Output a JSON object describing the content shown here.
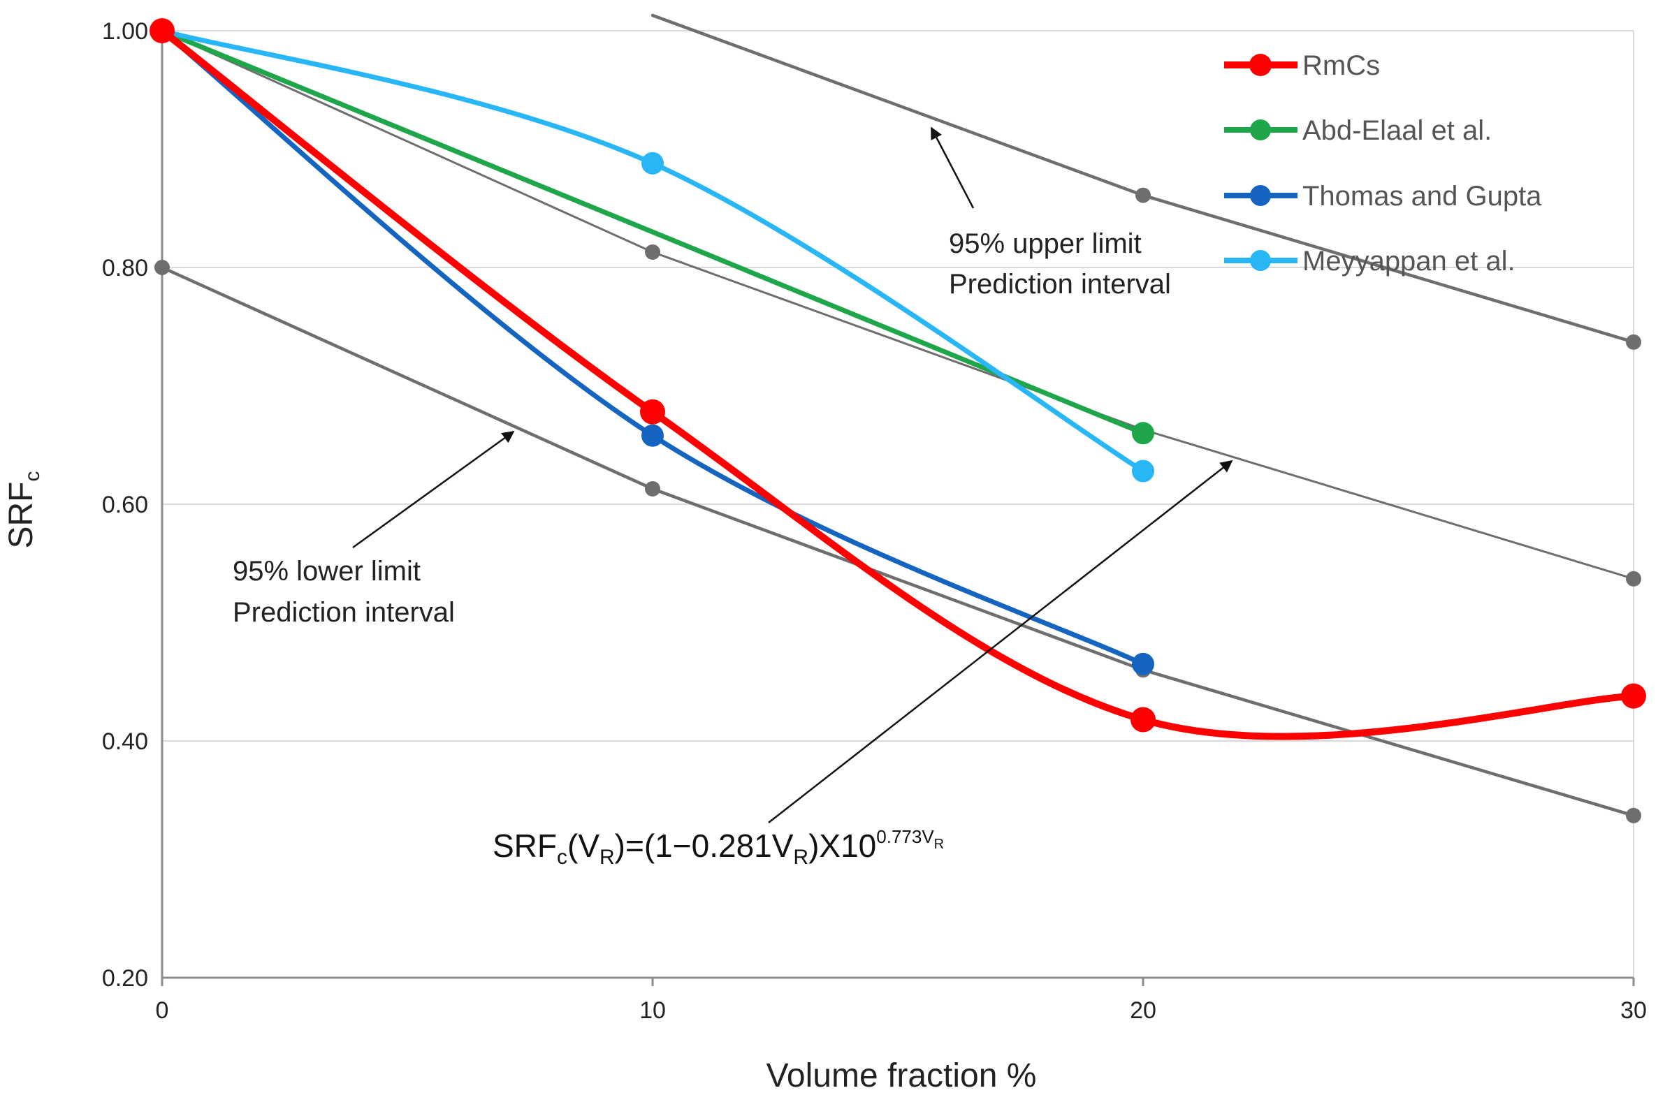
{
  "chart_data": {
    "type": "line",
    "title": "",
    "xlabel": "Volume fraction %",
    "ylabel": {
      "main": "SRF",
      "sub": "c"
    },
    "xlim": [
      0,
      30
    ],
    "ylim": [
      0.2,
      1.0
    ],
    "xticks": [
      0,
      10,
      20,
      30
    ],
    "xtick_labels": [
      "0",
      "10",
      "20",
      "30"
    ],
    "yticks": [
      0.2,
      0.4,
      0.6,
      0.8,
      1.0
    ],
    "ytick_labels": [
      "0.20",
      "0.40",
      "0.60",
      "0.80",
      "1.00"
    ],
    "grid": "horizontal",
    "legend_position": "top-right",
    "series": [
      {
        "name": "RmCs",
        "color": "#ff0000",
        "legend": true,
        "smooth": true,
        "x": [
          0,
          10,
          20,
          30
        ],
        "y": [
          1.0,
          0.678,
          0.418,
          0.438
        ]
      },
      {
        "name": "Abd-Elaal et al.",
        "color": "#1fa64a",
        "legend": true,
        "smooth": false,
        "x": [
          0,
          20
        ],
        "y": [
          1.0,
          0.66
        ]
      },
      {
        "name": "Thomas and Gupta",
        "color": "#1565c0",
        "legend": true,
        "smooth": true,
        "x": [
          0,
          10,
          20
        ],
        "y": [
          1.0,
          0.658,
          0.465
        ]
      },
      {
        "name": "Meyyappan et al.",
        "color": "#29b6f6",
        "legend": true,
        "smooth": true,
        "x": [
          0,
          10,
          20
        ],
        "y": [
          1.0,
          0.888,
          0.628
        ]
      },
      {
        "name": "95% upper limit",
        "color": "#6e6e6e",
        "legend": false,
        "smooth": false,
        "x": [
          10,
          20,
          30
        ],
        "y": [
          1.013,
          0.861,
          0.737
        ]
      },
      {
        "name": "SRFc fit",
        "color": "#6e6e6e",
        "legend": false,
        "smooth": false,
        "x": [
          0,
          10,
          20,
          30
        ],
        "y": [
          1.0,
          0.813,
          0.663,
          0.537
        ]
      },
      {
        "name": "95% lower limit",
        "color": "#6e6e6e",
        "legend": false,
        "smooth": false,
        "x": [
          0,
          10,
          20,
          30
        ],
        "y": [
          0.8,
          0.613,
          0.46,
          0.337
        ]
      }
    ],
    "annotations": {
      "upper": [
        "95% upper limit",
        "Prediction interval"
      ],
      "lower": [
        "95% lower limit",
        "Prediction interval"
      ],
      "formula": {
        "p1": "SRF",
        "p2": "c",
        "p3": "(V",
        "p4": "R",
        "p5": ")=(1−0.281V",
        "p6": "R",
        "p7": ")X10",
        "p8": "0.773V",
        "p9": "R"
      }
    }
  }
}
